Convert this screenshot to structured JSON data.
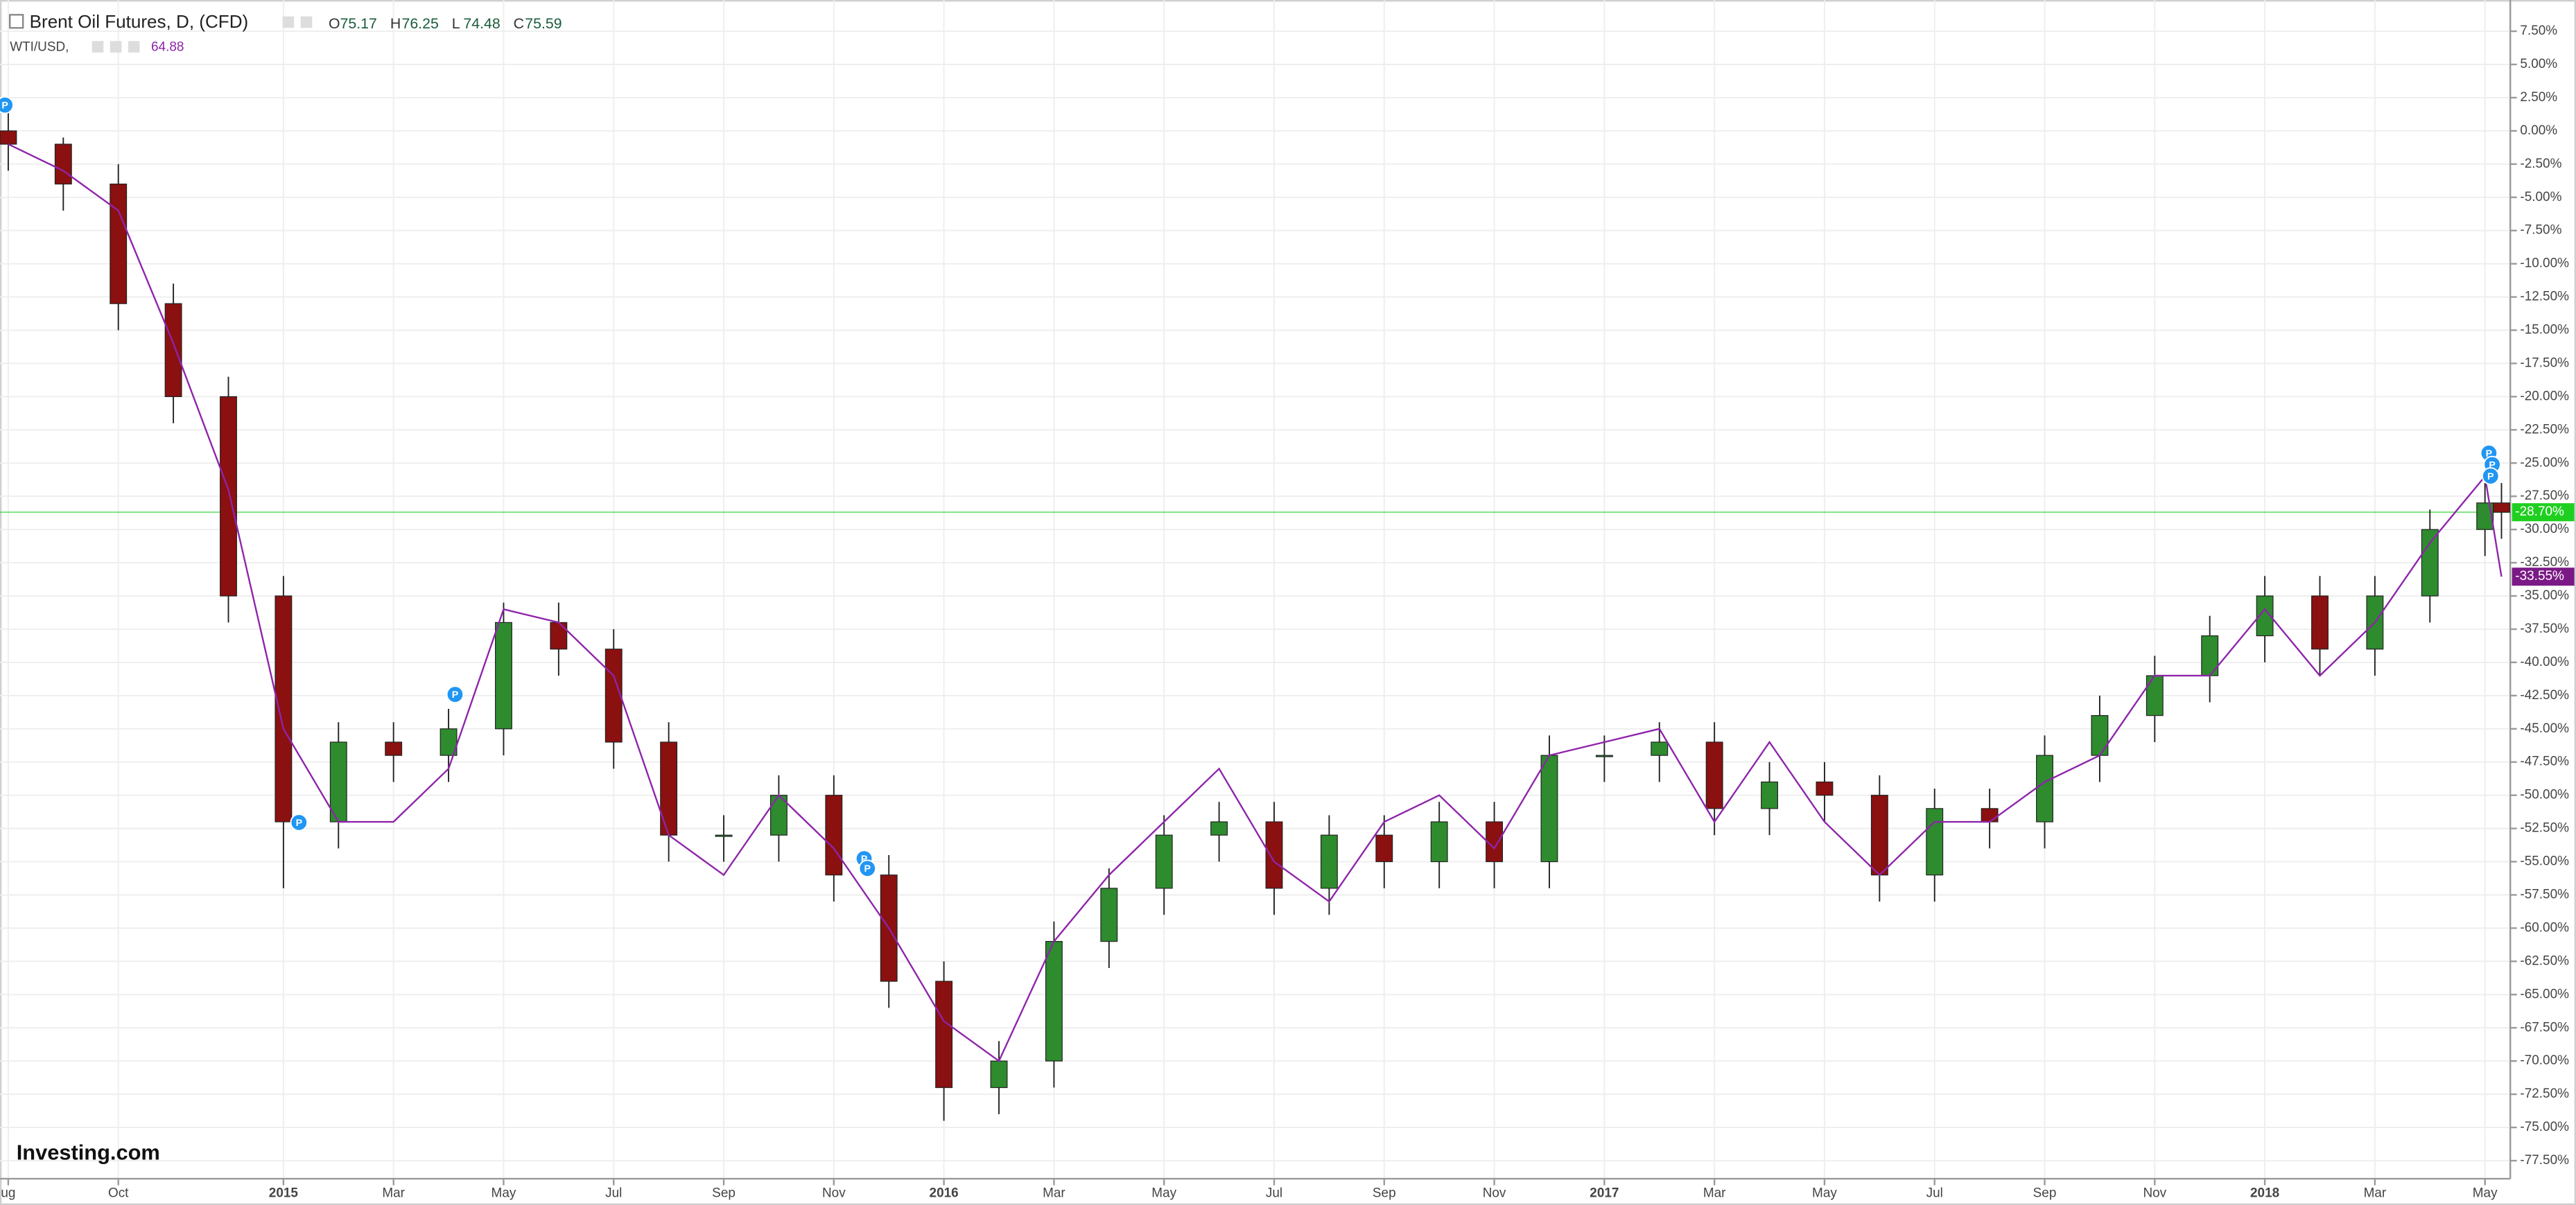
{
  "chart_data": {
    "type": "candlestick",
    "logo": "Investing.com",
    "marker_label": "P",
    "ohlc_header": [
      {
        "key": "O",
        "value": 75.17
      },
      {
        "key": "H",
        "value": 76.25
      },
      {
        "key": "L",
        "value": 74.48
      },
      {
        "key": "C",
        "value": 75.59
      }
    ],
    "compare_value": 64.88,
    "series": [
      {
        "name": "Brent Oil Futures, D, (CFD)",
        "up_color": "#2e8b2e",
        "down_color": "#8b1010",
        "x": [
          0,
          1,
          2,
          3,
          4,
          5,
          6,
          7,
          8,
          9,
          10,
          11,
          12,
          13,
          14,
          15,
          16,
          17,
          18,
          19,
          20,
          21,
          22,
          23,
          24,
          25,
          26,
          27,
          28,
          29,
          30,
          31,
          32,
          33,
          34,
          35,
          36,
          37,
          38,
          39,
          40,
          41,
          42,
          43,
          44,
          45,
          45.3
        ],
        "open": [
          0,
          -1,
          -4,
          -13,
          -20,
          -35,
          -52,
          -46,
          -47,
          -45,
          -37,
          -39,
          -46,
          -53,
          -53,
          -50,
          -56,
          -64,
          -72,
          -70,
          -61,
          -57,
          -53,
          -52,
          -57,
          -53,
          -55,
          -52,
          -55,
          -47,
          -47,
          -46,
          -51,
          -49,
          -50,
          -56,
          -51,
          -52,
          -47,
          -44,
          -41,
          -38,
          -35,
          -39,
          -35,
          -30,
          -28
        ],
        "high": [
          1.5,
          -0.5,
          -2.5,
          -11.5,
          -18.5,
          -33.5,
          -44.5,
          -44.5,
          -43.5,
          -35.5,
          -35.5,
          -37.5,
          -44.5,
          -51.5,
          -48.5,
          -48.5,
          -54.5,
          -62.5,
          -68.5,
          -59.5,
          -55.5,
          -51.5,
          -50.5,
          -50.5,
          -51.5,
          -51.5,
          -50.5,
          -50.5,
          -45.5,
          -45.5,
          -44.5,
          -44.5,
          -47.5,
          -47.5,
          -48.5,
          -49.5,
          -49.5,
          -45.5,
          -42.5,
          -39.5,
          -36.5,
          -33.5,
          -33.5,
          -33.5,
          -28.5,
          -26.5,
          -26.5
        ],
        "low": [
          -3,
          -6,
          -15,
          -22,
          -37,
          -57,
          -54,
          -49,
          -49,
          -47,
          -41,
          -48,
          -55,
          -55,
          -55,
          -58,
          -66,
          -74.5,
          -74,
          -72,
          -63,
          -59,
          -55,
          -59,
          -59,
          -57,
          -57,
          -57,
          -57,
          -49,
          -49,
          -53,
          -53,
          -52,
          -58,
          -58,
          -54,
          -54,
          -49,
          -46,
          -43,
          -40,
          -41,
          -41,
          -37,
          -32,
          -30.7
        ],
        "close": [
          -1,
          -4,
          -13,
          -20,
          -35,
          -52,
          -46,
          -47,
          -45,
          -37,
          -39,
          -46,
          -53,
          -53,
          -50,
          -56,
          -64,
          -72,
          -70,
          -61,
          -57,
          -53,
          -52,
          -57,
          -53,
          -55,
          -52,
          -55,
          -47,
          -47,
          -46,
          -51,
          -49,
          -50,
          -56,
          -51,
          -52,
          -47,
          -44,
          -41,
          -38,
          -35,
          -39,
          -35,
          -30,
          -28,
          -28.7
        ]
      },
      {
        "name": "WTI/USD,",
        "color": "#8e24aa",
        "x": [
          0,
          1,
          2,
          3,
          4,
          5,
          6,
          7,
          8,
          9,
          10,
          11,
          12,
          13,
          14,
          15,
          16,
          17,
          18,
          19,
          20,
          21,
          22,
          23,
          24,
          25,
          26,
          27,
          28,
          29,
          30,
          31,
          32,
          33,
          34,
          35,
          36,
          37,
          38,
          39,
          40,
          41,
          42,
          43,
          44,
          45,
          45.3
        ],
        "values": [
          -1,
          -3,
          -6,
          -16,
          -27,
          -45,
          -52,
          -52,
          -48,
          -36,
          -37,
          -41,
          -53,
          -56,
          -50,
          -54,
          -60,
          -67,
          -70,
          -61,
          -56,
          -52,
          -48,
          -55,
          -58,
          -52,
          -50,
          -54,
          -47,
          -46,
          -45,
          -52,
          -46,
          -52,
          -56,
          -52,
          -52,
          -49,
          -47,
          -41,
          -41,
          -36,
          -41,
          -37,
          -31,
          -26,
          -33.55
        ]
      }
    ],
    "price_labels": [
      {
        "value": -28.7,
        "label": "-28.70%",
        "color": "#1fcf1f"
      },
      {
        "value": -33.55,
        "label": "-33.55%",
        "color": "#7b1a86"
      }
    ],
    "xlim": [
      -0.15,
      45.46
    ],
    "xticks": [
      {
        "value": 0,
        "label": "ug"
      },
      {
        "value": 2,
        "label": "Oct"
      },
      {
        "value": 5,
        "label": "2015"
      },
      {
        "value": 7,
        "label": "Mar"
      },
      {
        "value": 9,
        "label": "May"
      },
      {
        "value": 11,
        "label": "Jul"
      },
      {
        "value": 13,
        "label": "Sep"
      },
      {
        "value": 15,
        "label": "Nov"
      },
      {
        "value": 17,
        "label": "2016"
      },
      {
        "value": 19,
        "label": "Mar"
      },
      {
        "value": 21,
        "label": "May"
      },
      {
        "value": 23,
        "label": "Jul"
      },
      {
        "value": 25,
        "label": "Sep"
      },
      {
        "value": 27,
        "label": "Nov"
      },
      {
        "value": 29,
        "label": "2017"
      },
      {
        "value": 31,
        "label": "Mar"
      },
      {
        "value": 33,
        "label": "May"
      },
      {
        "value": 35,
        "label": "Jul"
      },
      {
        "value": 37,
        "label": "Sep"
      },
      {
        "value": 39,
        "label": "Nov"
      },
      {
        "value": 41,
        "label": "2018"
      },
      {
        "value": 43,
        "label": "Mar"
      },
      {
        "value": 45,
        "label": "May"
      }
    ],
    "ylim": [
      -78.86,
      9.85
    ],
    "yticks": [
      {
        "value": 7.5,
        "label": "7.50%"
      },
      {
        "value": 5,
        "label": "5.00%"
      },
      {
        "value": 2.5,
        "label": "2.50%"
      },
      {
        "value": 0,
        "label": "0.00%"
      },
      {
        "value": -2.5,
        "label": "-2.50%"
      },
      {
        "value": -5,
        "label": "-5.00%"
      },
      {
        "value": -7.5,
        "label": "-7.50%"
      },
      {
        "value": -10,
        "label": "-10.00%"
      },
      {
        "value": -12.5,
        "label": "-12.50%"
      },
      {
        "value": -15,
        "label": "-15.00%"
      },
      {
        "value": -17.5,
        "label": "-17.50%"
      },
      {
        "value": -20,
        "label": "-20.00%"
      },
      {
        "value": -22.5,
        "label": "-22.50%"
      },
      {
        "value": -25,
        "label": "-25.00%"
      },
      {
        "value": -27.5,
        "label": "-27.50%"
      },
      {
        "value": -30,
        "label": "-30.00%"
      },
      {
        "value": -32.5,
        "label": "-32.50%"
      },
      {
        "value": -35,
        "label": "-35.00%"
      },
      {
        "value": -37.5,
        "label": "-37.50%"
      },
      {
        "value": -40,
        "label": "-40.00%"
      },
      {
        "value": -42.5,
        "label": "-42.50%"
      },
      {
        "value": -45,
        "label": "-45.00%"
      },
      {
        "value": -47.5,
        "label": "-47.50%"
      },
      {
        "value": -50,
        "label": "-50.00%"
      },
      {
        "value": -52.5,
        "label": "-52.50%"
      },
      {
        "value": -55,
        "label": "-55.00%"
      },
      {
        "value": -57.5,
        "label": "-57.50%"
      },
      {
        "value": -60,
        "label": "-60.00%"
      },
      {
        "value": -62.5,
        "label": "-62.50%"
      },
      {
        "value": -65,
        "label": "-65.00%"
      },
      {
        "value": -67.5,
        "label": "-67.50%"
      },
      {
        "value": -70,
        "label": "-70.00%"
      },
      {
        "value": -72.5,
        "label": "-72.50%"
      },
      {
        "value": -75,
        "label": "-75.00%"
      },
      {
        "value": -77.5,
        "label": "-77.50%"
      }
    ],
    "grid": true
  }
}
